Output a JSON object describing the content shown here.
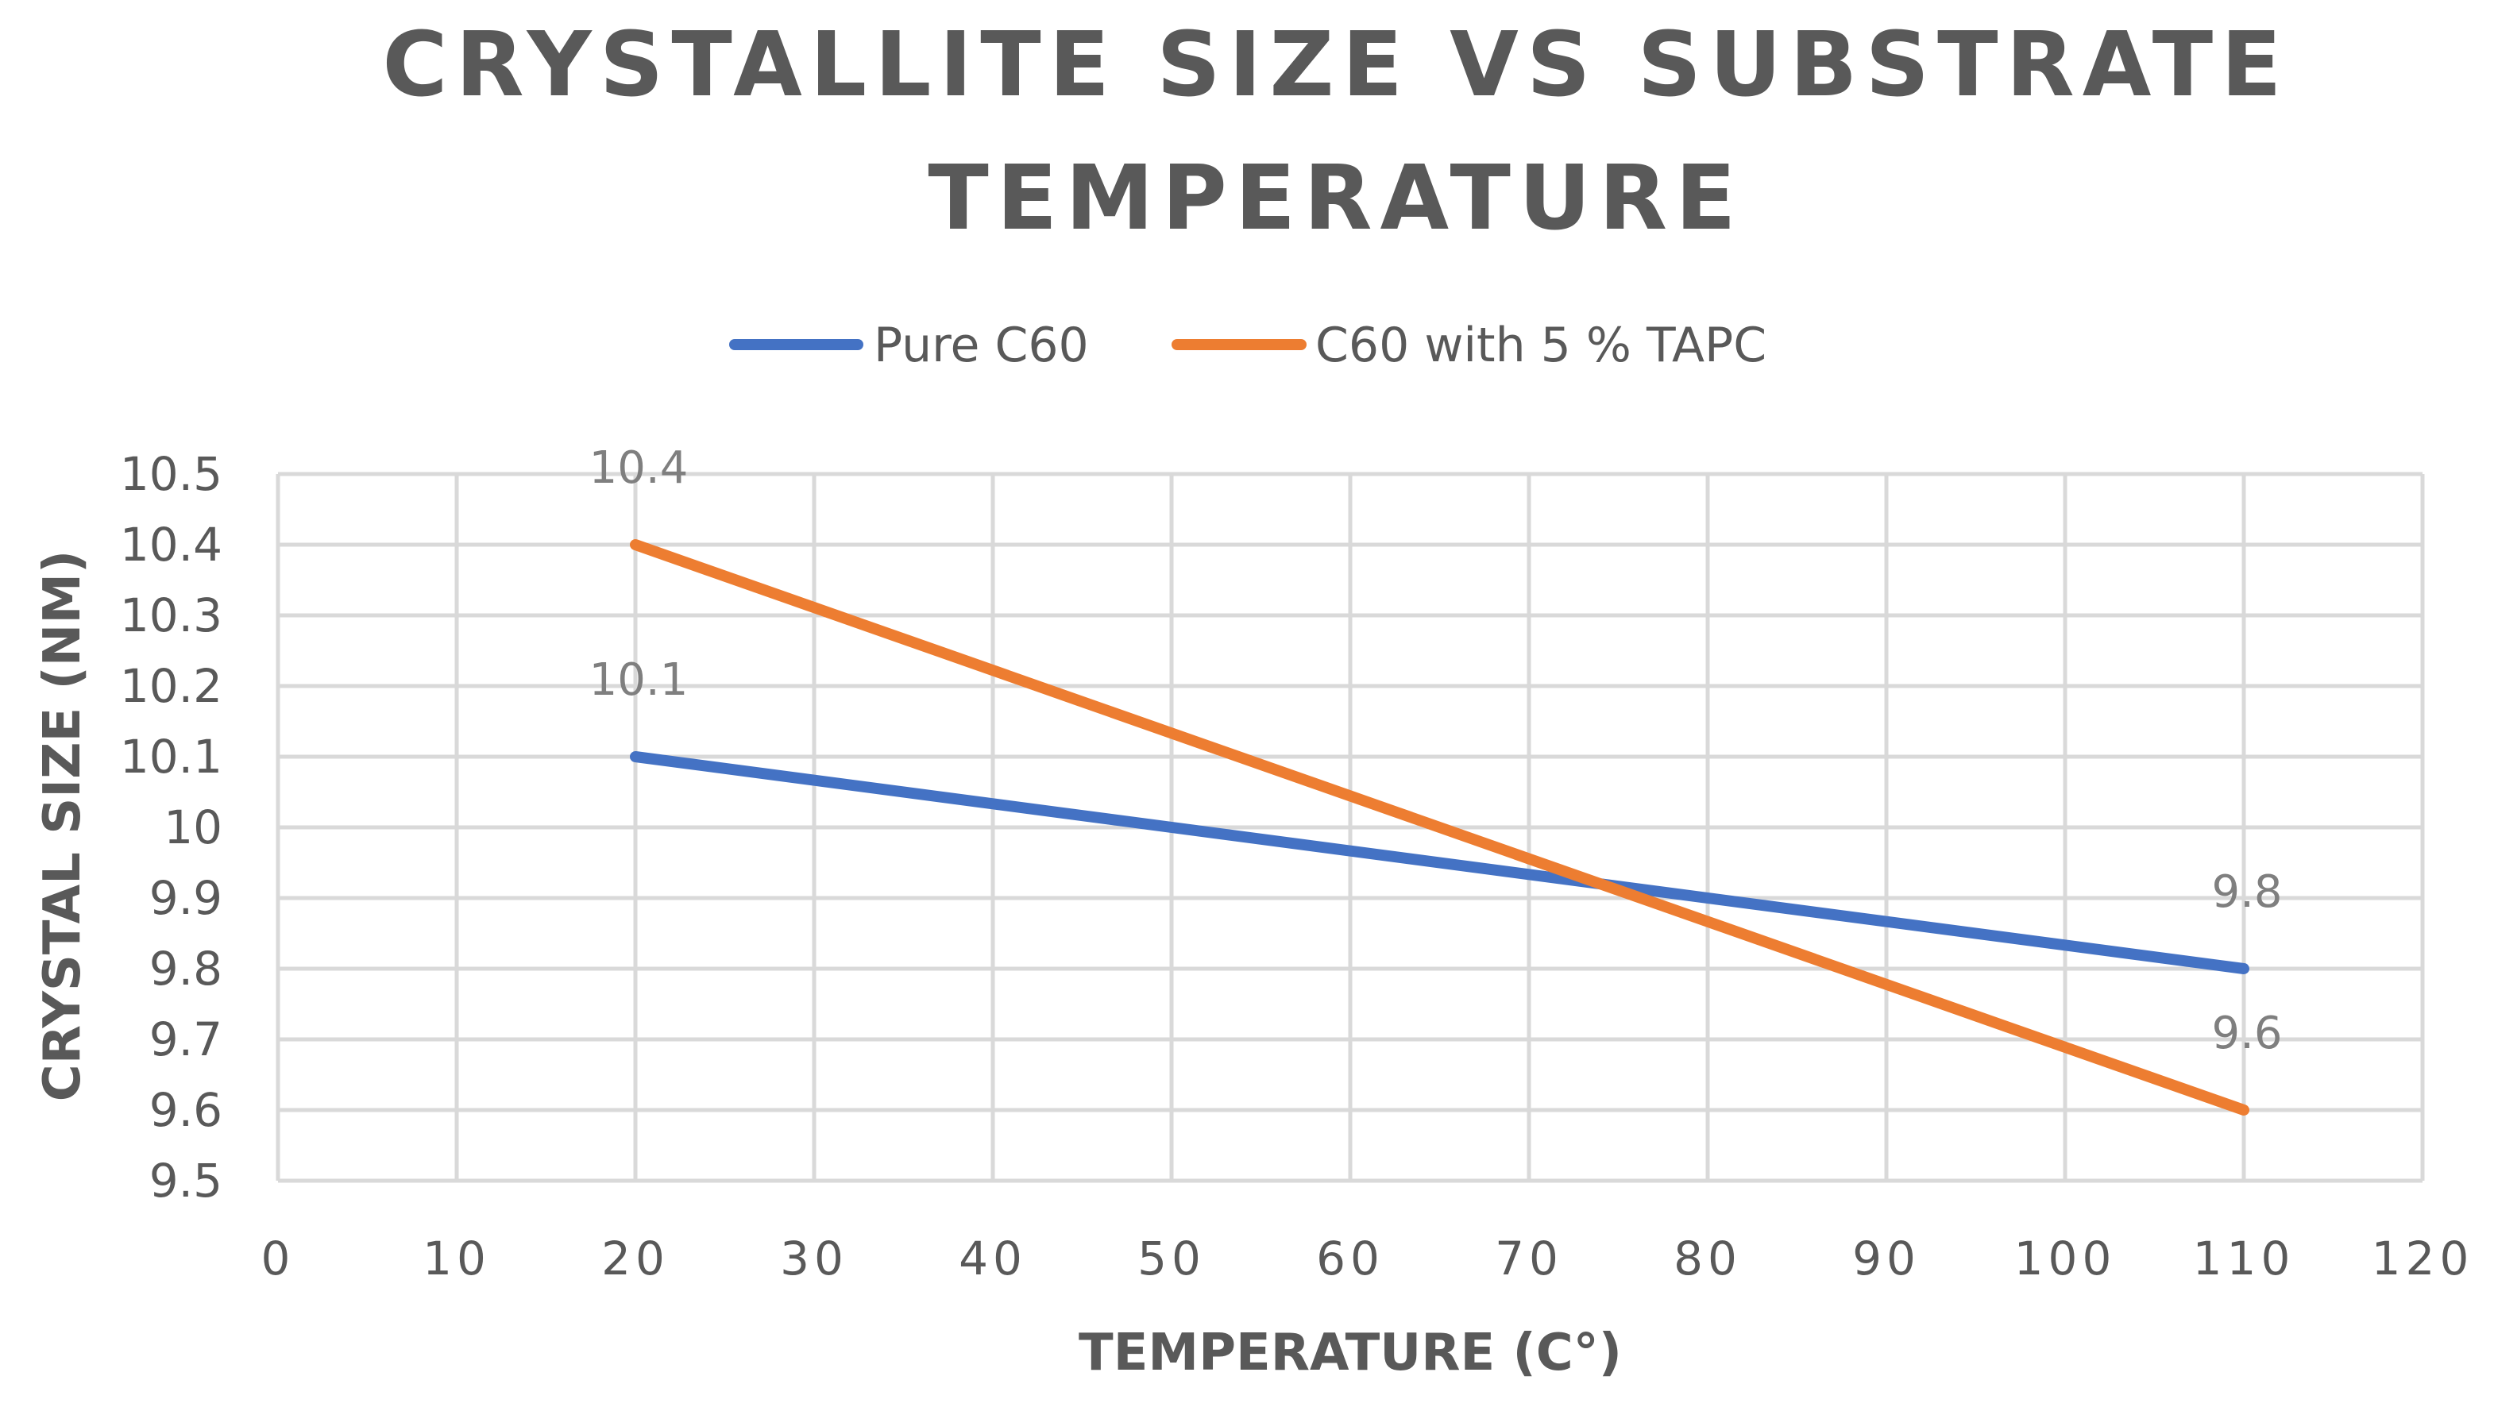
{
  "chart_data": {
    "type": "line",
    "title_lines": [
      "CRYSTALLITE SIZE VS SUBSTRATE",
      "TEMPERATURE"
    ],
    "title": "CRYSTALLITE SIZE VS SUBSTRATE TEMPERATURE",
    "xlabel": "TEMPERATURE (C°)",
    "ylabel": "CRYSTAL SIZE (NM)",
    "xlim": [
      0,
      120
    ],
    "ylim": [
      9.5,
      10.5
    ],
    "x_ticks": [
      0,
      10,
      20,
      30,
      40,
      50,
      60,
      70,
      80,
      90,
      100,
      110,
      120
    ],
    "y_ticks": [
      9.5,
      9.6,
      9.7,
      9.8,
      9.9,
      10,
      10.1,
      10.2,
      10.3,
      10.4,
      10.5
    ],
    "grid": true,
    "legend_position": "top",
    "series": [
      {
        "name": "Pure C60",
        "color": "#4472c4",
        "x": [
          20,
          110
        ],
        "values": [
          10.1,
          9.8
        ],
        "point_labels": [
          "10.1",
          "9.8"
        ]
      },
      {
        "name": "C60 with 5 % TAPC",
        "color": "#ed7d31",
        "x": [
          20,
          110
        ],
        "values": [
          10.4,
          9.6
        ],
        "point_labels": [
          "10.4",
          "9.6"
        ]
      }
    ]
  }
}
